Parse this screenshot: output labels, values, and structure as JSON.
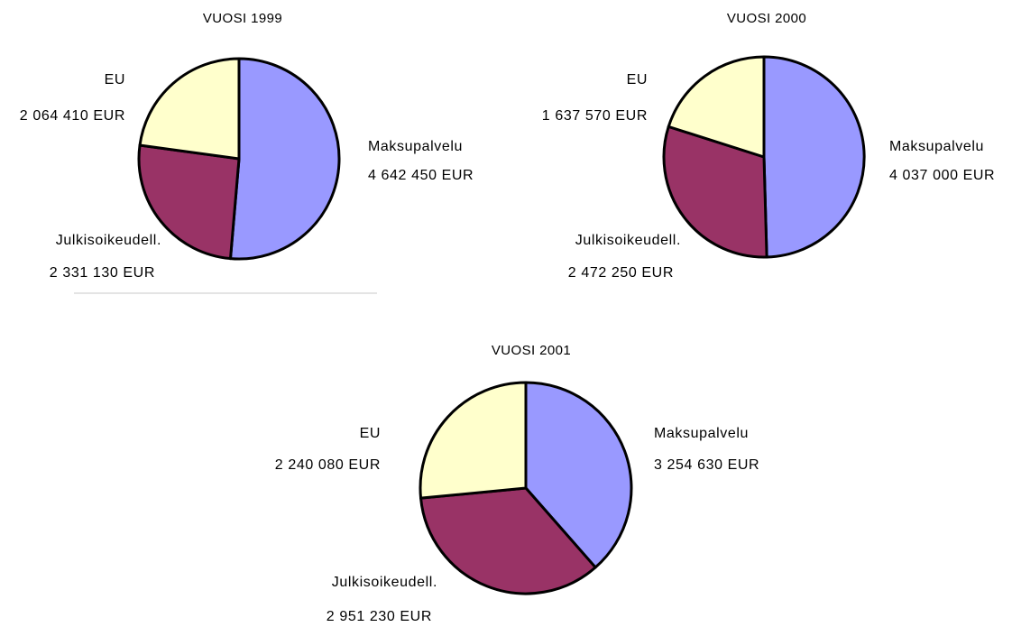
{
  "colors": {
    "Maksupalvelu": "#9999ff",
    "Julkisoikeudell.": "#993366",
    "EU": "#ffffcc"
  },
  "chart_data": [
    {
      "type": "pie",
      "title": "VUOSI 1999",
      "slices": [
        {
          "label": "Maksupalvelu",
          "value": 4642450,
          "value_text": "4 642 450 EUR"
        },
        {
          "label": "Julkisoikeudell.",
          "value": 2331130,
          "value_text": "2 331 130 EUR"
        },
        {
          "label": "EU",
          "value": 2064410,
          "value_text": "2 064 410 EUR"
        }
      ]
    },
    {
      "type": "pie",
      "title": "VUOSI 2000",
      "slices": [
        {
          "label": "Maksupalvelu",
          "value": 4037000,
          "value_text": "4 037 000 EUR"
        },
        {
          "label": "Julkisoikeudell.",
          "value": 2472250,
          "value_text": "2 472 250 EUR"
        },
        {
          "label": "EU",
          "value": 1637570,
          "value_text": "1 637 570 EUR"
        }
      ]
    },
    {
      "type": "pie",
      "title": "VUOSI 2001",
      "slices": [
        {
          "label": "Maksupalvelu",
          "value": 3254630,
          "value_text": "3 254 630 EUR"
        },
        {
          "label": "Julkisoikeudell.",
          "value": 2951230,
          "value_text": "2 951 230 EUR"
        },
        {
          "label": "EU",
          "value": 2240080,
          "value_text": "2 240 080 EUR"
        }
      ]
    }
  ]
}
